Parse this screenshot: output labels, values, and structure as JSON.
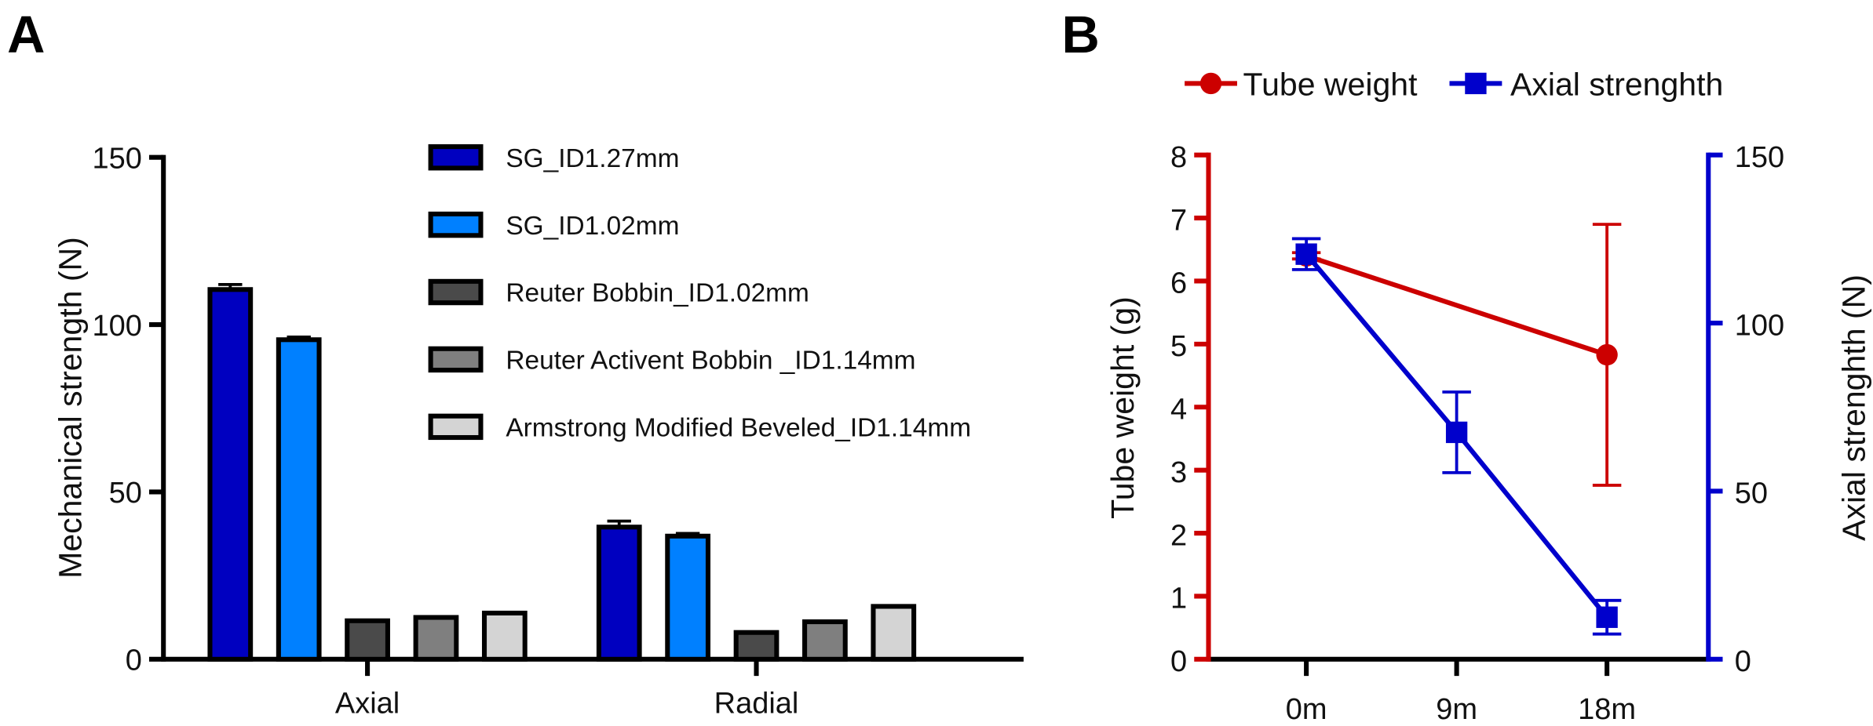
{
  "chart_data": [
    {
      "panel_label": "A",
      "type": "bar",
      "ylabel": "Mechanical strength (N)",
      "xlabel": "",
      "ylim": [
        0,
        150
      ],
      "yticks": [
        0,
        50,
        100,
        150
      ],
      "categories": [
        "Axial",
        "Radial"
      ],
      "legend_position": "top-right",
      "series": [
        {
          "name": "SG_ID1.27mm",
          "color": "#0000c0",
          "values": [
            110.5,
            39.5
          ],
          "errors": [
            1.5,
            1.8
          ]
        },
        {
          "name": "SG_ID1.02mm",
          "color": "#0080ff",
          "values": [
            95.5,
            36.8
          ],
          "errors": [
            0.8,
            0.8
          ]
        },
        {
          "name": "Reuter Bobbin_ID1.02mm",
          "color": "#4a4a4a",
          "values": [
            11.5,
            8.0
          ],
          "errors": [
            0,
            0
          ]
        },
        {
          "name": "Reuter Activent Bobbin _ID1.14mm",
          "color": "#7f7f7f",
          "values": [
            12.5,
            11.2
          ],
          "errors": [
            0,
            0
          ]
        },
        {
          "name": "Armstrong Modified Beveled_ID1.14mm",
          "color": "#d4d4d4",
          "values": [
            13.8,
            15.8
          ],
          "errors": [
            0,
            0
          ]
        }
      ]
    },
    {
      "panel_label": "B",
      "type": "line",
      "categories": [
        "0m",
        "9m",
        "18m"
      ],
      "legend_position": "top",
      "y_left": {
        "label": "Tube weight (g)",
        "ylim": [
          0,
          8
        ],
        "ticks": [
          0,
          1,
          2,
          3,
          4,
          5,
          6,
          7,
          8
        ],
        "color": "#cc0000"
      },
      "y_right": {
        "label": "Axial strenghth (N)",
        "ylim": [
          0,
          150
        ],
        "ticks": [
          0,
          50,
          100,
          150
        ],
        "color": "#0000cc"
      },
      "series": [
        {
          "name": "Tube weight",
          "axis": "left",
          "marker": "circle",
          "color": "#cc0000",
          "x": [
            "0m",
            "18m"
          ],
          "values": [
            6.4,
            4.83
          ],
          "errors": [
            0.05,
            2.07
          ]
        },
        {
          "name": "Axial strenghth",
          "axis": "right",
          "marker": "square",
          "color": "#0000cc",
          "x": [
            "0m",
            "9m",
            "18m"
          ],
          "values": [
            120.5,
            67.5,
            12.5
          ],
          "errors": [
            4.6,
            12,
            5
          ]
        }
      ]
    }
  ]
}
